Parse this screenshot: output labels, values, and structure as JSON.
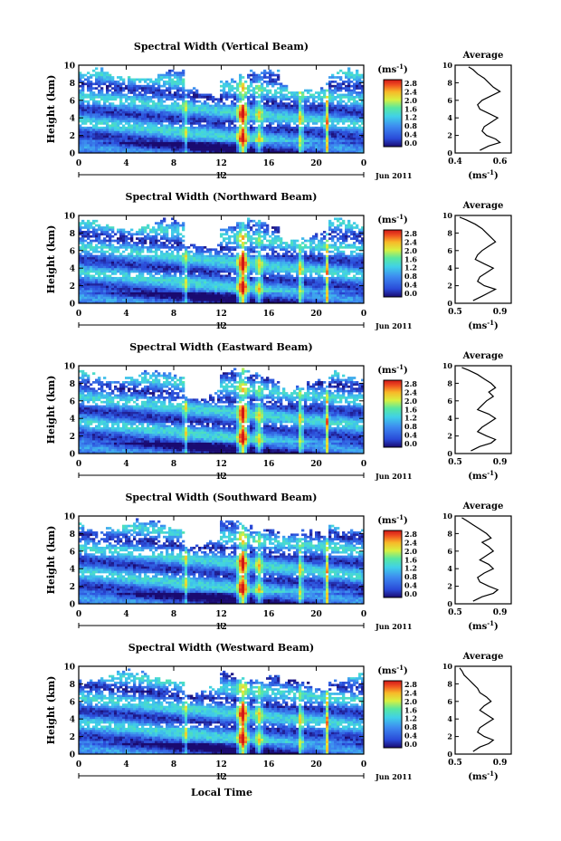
{
  "figure": {
    "xlabel_bottom": "Local Time"
  },
  "colorbar": {
    "unit": "(ms",
    "unit_exp": "-1",
    "unit_close": ")",
    "ticks": [
      "2.8",
      "2.4",
      "2.0",
      "1.6",
      "1.2",
      "0.8",
      "0.4",
      "0.0"
    ]
  },
  "chart_data": [
    {
      "type": "heatmap",
      "title": "Spectral Width (Vertical Beam)",
      "ylabel": "Height (km)",
      "x_ticks": [
        "0",
        "4",
        "8",
        "12",
        "16",
        "20",
        "0"
      ],
      "y_ticks": [
        "0",
        "2",
        "4",
        "6",
        "8",
        "10"
      ],
      "xlim": [
        0,
        24
      ],
      "ylim": [
        0,
        10
      ],
      "date_tick": "12",
      "date_label": "Jun 2011",
      "average_profile": {
        "title": "Average",
        "xlabel": "(ms",
        "xlabel_exp": "-1",
        "xlabel_close": ")",
        "x_ticks": [
          "0.4",
          "0.6"
        ],
        "y_ticks": [
          "0",
          "2",
          "4",
          "6",
          "8",
          "10"
        ],
        "xlim": [
          0.4,
          0.9
        ],
        "ylim": [
          0,
          10
        ],
        "height": [
          0.3,
          0.8,
          1.2,
          1.6,
          2.0,
          2.5,
          3.0,
          3.5,
          4.0,
          4.5,
          5.0,
          5.5,
          6.0,
          6.5,
          7.0,
          7.5,
          8.0,
          8.5,
          9.0,
          9.5,
          9.8
        ],
        "width": [
          0.62,
          0.7,
          0.8,
          0.76,
          0.68,
          0.64,
          0.66,
          0.72,
          0.78,
          0.7,
          0.62,
          0.6,
          0.64,
          0.72,
          0.8,
          0.74,
          0.7,
          0.66,
          0.6,
          0.56,
          0.52
        ]
      }
    },
    {
      "type": "heatmap",
      "title": "Spectral Width (Northward Beam)",
      "ylabel": "Height (km)",
      "x_ticks": [
        "0",
        "4",
        "8",
        "12",
        "16",
        "20",
        "0"
      ],
      "y_ticks": [
        "0",
        "2",
        "4",
        "6",
        "8",
        "10"
      ],
      "xlim": [
        0,
        24
      ],
      "ylim": [
        0,
        10
      ],
      "date_tick": "12",
      "date_label": "Jun 2011",
      "average_profile": {
        "title": "Average",
        "xlabel": "(ms",
        "xlabel_exp": "-1",
        "xlabel_close": ")",
        "x_ticks": [
          "0.5",
          "0.9"
        ],
        "y_ticks": [
          "0",
          "2",
          "4",
          "6",
          "8",
          "10"
        ],
        "xlim": [
          0.5,
          1.0
        ],
        "ylim": [
          0,
          10
        ],
        "height": [
          0.3,
          0.8,
          1.2,
          1.6,
          2.0,
          2.5,
          3.0,
          3.5,
          4.0,
          4.5,
          5.0,
          5.5,
          6.0,
          6.5,
          7.0,
          7.5,
          8.0,
          8.5,
          9.0,
          9.5,
          9.8
        ],
        "width": [
          0.66,
          0.74,
          0.8,
          0.86,
          0.76,
          0.7,
          0.72,
          0.78,
          0.84,
          0.76,
          0.68,
          0.7,
          0.74,
          0.8,
          0.86,
          0.82,
          0.78,
          0.74,
          0.68,
          0.6,
          0.54
        ]
      }
    },
    {
      "type": "heatmap",
      "title": "Spectral Width (Eastward Beam)",
      "ylabel": "Height (km)",
      "x_ticks": [
        "0",
        "4",
        "8",
        "12",
        "16",
        "20",
        "0"
      ],
      "y_ticks": [
        "0",
        "2",
        "4",
        "6",
        "8",
        "10"
      ],
      "xlim": [
        0,
        24
      ],
      "ylim": [
        0,
        10
      ],
      "date_tick": "12",
      "date_label": "Jun 2011",
      "average_profile": {
        "title": "Average",
        "xlabel": "(ms",
        "xlabel_exp": "-1",
        "xlabel_close": ")",
        "x_ticks": [
          "0.5",
          "0.9"
        ],
        "y_ticks": [
          "0",
          "2",
          "4",
          "6",
          "8",
          "10"
        ],
        "xlim": [
          0.5,
          1.0
        ],
        "ylim": [
          0,
          10
        ],
        "height": [
          0.3,
          0.8,
          1.2,
          1.6,
          2.0,
          2.5,
          3.0,
          3.5,
          4.0,
          4.5,
          5.0,
          5.5,
          6.0,
          6.5,
          7.0,
          7.5,
          8.0,
          8.5,
          9.0,
          9.5,
          9.8
        ],
        "width": [
          0.64,
          0.72,
          0.82,
          0.86,
          0.78,
          0.7,
          0.74,
          0.8,
          0.86,
          0.8,
          0.7,
          0.74,
          0.78,
          0.84,
          0.8,
          0.86,
          0.82,
          0.76,
          0.7,
          0.62,
          0.56
        ]
      }
    },
    {
      "type": "heatmap",
      "title": "Spectral Width (Southward Beam)",
      "ylabel": "Height (km)",
      "x_ticks": [
        "0",
        "4",
        "8",
        "12",
        "16",
        "20",
        "0"
      ],
      "y_ticks": [
        "0",
        "2",
        "4",
        "6",
        "8",
        "10"
      ],
      "xlim": [
        0,
        24
      ],
      "ylim": [
        0,
        10
      ],
      "date_tick": "12",
      "date_label": "Jun 2011",
      "average_profile": {
        "title": "Average",
        "xlabel": "(ms",
        "xlabel_exp": "-1",
        "xlabel_close": ")",
        "x_ticks": [
          "0.5",
          "0.9"
        ],
        "y_ticks": [
          "0",
          "2",
          "4",
          "6",
          "8",
          "10"
        ],
        "xlim": [
          0.5,
          1.0
        ],
        "ylim": [
          0,
          10
        ],
        "height": [
          0.3,
          0.8,
          1.2,
          1.6,
          2.0,
          2.5,
          3.0,
          3.5,
          4.0,
          4.5,
          5.0,
          5.5,
          6.0,
          6.5,
          7.0,
          7.5,
          8.0,
          8.5,
          9.0,
          9.5,
          9.8
        ],
        "width": [
          0.66,
          0.74,
          0.84,
          0.88,
          0.8,
          0.72,
          0.7,
          0.76,
          0.84,
          0.8,
          0.72,
          0.78,
          0.84,
          0.8,
          0.74,
          0.82,
          0.78,
          0.72,
          0.66,
          0.6,
          0.56
        ]
      }
    },
    {
      "type": "heatmap",
      "title": "Spectral Width (Westward Beam)",
      "ylabel": "Height (km)",
      "x_ticks": [
        "0",
        "4",
        "8",
        "12",
        "16",
        "20",
        "0"
      ],
      "y_ticks": [
        "0",
        "2",
        "4",
        "6",
        "8",
        "10"
      ],
      "xlim": [
        0,
        24
      ],
      "ylim": [
        0,
        10
      ],
      "date_tick": "12",
      "date_label": "Jun 2011",
      "average_profile": {
        "title": "Average",
        "xlabel": "(ms",
        "xlabel_exp": "-1",
        "xlabel_close": ")",
        "x_ticks": [
          "0.5",
          "0.9"
        ],
        "y_ticks": [
          "0",
          "2",
          "4",
          "6",
          "8",
          "10"
        ],
        "xlim": [
          0.5,
          1.0
        ],
        "ylim": [
          0,
          10
        ],
        "height": [
          0.3,
          0.8,
          1.2,
          1.6,
          2.0,
          2.5,
          3.0,
          3.5,
          4.0,
          4.5,
          5.0,
          5.5,
          6.0,
          6.5,
          7.0,
          7.5,
          8.0,
          8.5,
          9.0,
          9.5,
          9.8
        ],
        "width": [
          0.66,
          0.72,
          0.8,
          0.84,
          0.76,
          0.7,
          0.72,
          0.78,
          0.84,
          0.78,
          0.72,
          0.76,
          0.82,
          0.78,
          0.72,
          0.7,
          0.66,
          0.62,
          0.58,
          0.56,
          0.54
        ]
      }
    }
  ]
}
